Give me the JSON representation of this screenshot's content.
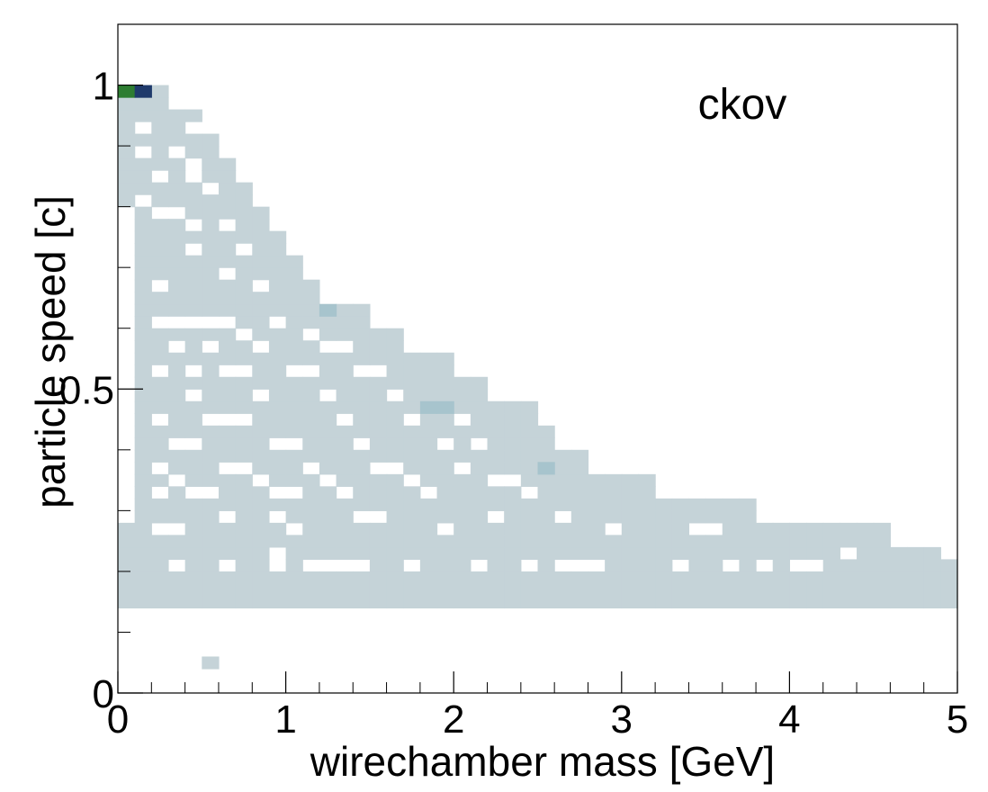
{
  "chart_data": {
    "type": "heatmap",
    "title": "ckov",
    "xlabel": "wirechamber mass [GeV]",
    "ylabel": "particle speed [c]",
    "xlim": [
      0,
      5
    ],
    "ylim": [
      0,
      1.1
    ],
    "xticks": [
      0,
      1,
      2,
      3,
      4,
      5
    ],
    "xtick_labels": [
      "0",
      "1",
      "2",
      "3",
      "4",
      "5"
    ],
    "yticks": [
      0,
      0.5,
      1
    ],
    "ytick_labels": [
      "0",
      "0.5",
      "1"
    ],
    "grid": false,
    "legend": "none",
    "bins": {
      "x_count": 50,
      "x_width": 0.1,
      "y_width": 0.02
    },
    "colors": {
      "low": "#c5d3d8",
      "mid": "#a7c4cd",
      "high": "#1f3a6b",
      "peak": "#2e7d32"
    },
    "regions": [
      {
        "ymin": 0.14,
        "ymax": 0.18,
        "xmin": 0.0,
        "xmax": 5.0,
        "level": 1
      },
      {
        "ymin": 0.18,
        "ymax": 0.24,
        "xmin": 0.0,
        "xmax": 5.0,
        "level": 1
      },
      {
        "ymin": 0.24,
        "ymax": 0.28,
        "xmin": 0.0,
        "xmax": 4.6,
        "level": 1
      },
      {
        "ymin": 0.28,
        "ymax": 0.32,
        "xmin": 0.1,
        "xmax": 3.8,
        "level": 1
      },
      {
        "ymin": 0.32,
        "ymax": 0.36,
        "xmin": 0.1,
        "xmax": 3.2,
        "level": 1
      },
      {
        "ymin": 0.36,
        "ymax": 0.4,
        "xmin": 0.1,
        "xmax": 2.8,
        "level": 1
      },
      {
        "ymin": 0.4,
        "ymax": 0.44,
        "xmin": 0.1,
        "xmax": 2.6,
        "level": 1
      },
      {
        "ymin": 0.44,
        "ymax": 0.48,
        "xmin": 0.1,
        "xmax": 2.5,
        "level": 1
      },
      {
        "ymin": 0.48,
        "ymax": 0.52,
        "xmin": 0.1,
        "xmax": 2.2,
        "level": 1
      },
      {
        "ymin": 0.52,
        "ymax": 0.56,
        "xmin": 0.1,
        "xmax": 2.0,
        "level": 1
      },
      {
        "ymin": 0.56,
        "ymax": 0.6,
        "xmin": 0.1,
        "xmax": 1.7,
        "level": 1
      },
      {
        "ymin": 0.6,
        "ymax": 0.64,
        "xmin": 0.1,
        "xmax": 1.5,
        "level": 1
      },
      {
        "ymin": 0.64,
        "ymax": 0.68,
        "xmin": 0.1,
        "xmax": 1.2,
        "level": 1
      },
      {
        "ymin": 0.68,
        "ymax": 0.72,
        "xmin": 0.1,
        "xmax": 1.1,
        "level": 1
      },
      {
        "ymin": 0.72,
        "ymax": 0.76,
        "xmin": 0.1,
        "xmax": 1.0,
        "level": 1
      },
      {
        "ymin": 0.76,
        "ymax": 0.8,
        "xmin": 0.1,
        "xmax": 0.9,
        "level": 1
      },
      {
        "ymin": 0.8,
        "ymax": 0.84,
        "xmin": 0.0,
        "xmax": 0.8,
        "level": 1
      },
      {
        "ymin": 0.84,
        "ymax": 0.88,
        "xmin": 0.0,
        "xmax": 0.7,
        "level": 1
      },
      {
        "ymin": 0.88,
        "ymax": 0.92,
        "xmin": 0.0,
        "xmax": 0.6,
        "level": 1
      },
      {
        "ymin": 0.92,
        "ymax": 0.96,
        "xmin": 0.0,
        "xmax": 0.5,
        "level": 1
      },
      {
        "ymin": 0.96,
        "ymax": 1.0,
        "xmin": 0.0,
        "xmax": 0.3,
        "level": 1
      }
    ],
    "cells": [
      {
        "x": 0.0,
        "y": 0.98,
        "level": 4
      },
      {
        "x": 0.1,
        "y": 0.98,
        "level": 3
      },
      {
        "x": 1.2,
        "y": 0.62,
        "level": 2
      },
      {
        "x": 1.8,
        "y": 0.46,
        "level": 2
      },
      {
        "x": 1.9,
        "y": 0.46,
        "level": 2
      },
      {
        "x": 2.5,
        "y": 0.36,
        "level": 2
      },
      {
        "x": 0.5,
        "y": 0.04,
        "level": 1
      }
    ],
    "holes": [
      {
        "x": 0.1,
        "y": 0.92
      },
      {
        "x": 0.4,
        "y": 0.92
      },
      {
        "x": 0.5,
        "y": 0.92
      },
      {
        "x": 0.1,
        "y": 0.88
      },
      {
        "x": 0.3,
        "y": 0.88
      },
      {
        "x": 0.4,
        "y": 0.86
      },
      {
        "x": 0.2,
        "y": 0.84
      },
      {
        "x": 0.4,
        "y": 0.84
      },
      {
        "x": 0.5,
        "y": 0.82
      },
      {
        "x": 0.1,
        "y": 0.8
      },
      {
        "x": 0.2,
        "y": 0.78
      },
      {
        "x": 0.3,
        "y": 0.78
      },
      {
        "x": 0.4,
        "y": 0.76
      },
      {
        "x": 0.6,
        "y": 0.76
      },
      {
        "x": 0.7,
        "y": 0.72
      },
      {
        "x": 0.4,
        "y": 0.72
      },
      {
        "x": 0.6,
        "y": 0.68
      },
      {
        "x": 0.2,
        "y": 0.66
      },
      {
        "x": 0.8,
        "y": 0.66
      },
      {
        "x": 0.2,
        "y": 0.6
      },
      {
        "x": 0.3,
        "y": 0.6
      },
      {
        "x": 0.4,
        "y": 0.6
      },
      {
        "x": 0.5,
        "y": 0.6
      },
      {
        "x": 0.6,
        "y": 0.6
      },
      {
        "x": 0.9,
        "y": 0.6
      },
      {
        "x": 0.7,
        "y": 0.58
      },
      {
        "x": 1.1,
        "y": 0.58
      },
      {
        "x": 0.3,
        "y": 0.56
      },
      {
        "x": 0.5,
        "y": 0.56
      },
      {
        "x": 0.8,
        "y": 0.56
      },
      {
        "x": 1.2,
        "y": 0.56
      },
      {
        "x": 1.3,
        "y": 0.56
      },
      {
        "x": 0.2,
        "y": 0.52
      },
      {
        "x": 0.4,
        "y": 0.52
      },
      {
        "x": 0.6,
        "y": 0.52
      },
      {
        "x": 0.7,
        "y": 0.52
      },
      {
        "x": 1.0,
        "y": 0.52
      },
      {
        "x": 1.1,
        "y": 0.52
      },
      {
        "x": 1.4,
        "y": 0.52
      },
      {
        "x": 1.5,
        "y": 0.52
      },
      {
        "x": 0.4,
        "y": 0.48
      },
      {
        "x": 0.8,
        "y": 0.48
      },
      {
        "x": 1.2,
        "y": 0.48
      },
      {
        "x": 1.6,
        "y": 0.48
      },
      {
        "x": 0.2,
        "y": 0.44
      },
      {
        "x": 0.5,
        "y": 0.44
      },
      {
        "x": 0.6,
        "y": 0.44
      },
      {
        "x": 0.7,
        "y": 0.44
      },
      {
        "x": 1.3,
        "y": 0.44
      },
      {
        "x": 1.7,
        "y": 0.44
      },
      {
        "x": 2.0,
        "y": 0.44
      },
      {
        "x": 0.3,
        "y": 0.4
      },
      {
        "x": 0.4,
        "y": 0.4
      },
      {
        "x": 0.9,
        "y": 0.4
      },
      {
        "x": 1.0,
        "y": 0.4
      },
      {
        "x": 1.4,
        "y": 0.4
      },
      {
        "x": 1.9,
        "y": 0.4
      },
      {
        "x": 2.1,
        "y": 0.4
      },
      {
        "x": 0.2,
        "y": 0.36
      },
      {
        "x": 0.6,
        "y": 0.36
      },
      {
        "x": 0.7,
        "y": 0.36
      },
      {
        "x": 1.1,
        "y": 0.36
      },
      {
        "x": 1.5,
        "y": 0.36
      },
      {
        "x": 1.6,
        "y": 0.36
      },
      {
        "x": 2.0,
        "y": 0.36
      },
      {
        "x": 0.3,
        "y": 0.34
      },
      {
        "x": 0.8,
        "y": 0.34
      },
      {
        "x": 1.2,
        "y": 0.34
      },
      {
        "x": 1.7,
        "y": 0.34
      },
      {
        "x": 2.2,
        "y": 0.34
      },
      {
        "x": 2.3,
        "y": 0.34
      },
      {
        "x": 0.2,
        "y": 0.32
      },
      {
        "x": 0.4,
        "y": 0.32
      },
      {
        "x": 0.5,
        "y": 0.32
      },
      {
        "x": 0.9,
        "y": 0.32
      },
      {
        "x": 1.0,
        "y": 0.32
      },
      {
        "x": 1.3,
        "y": 0.32
      },
      {
        "x": 1.8,
        "y": 0.32
      },
      {
        "x": 2.4,
        "y": 0.32
      },
      {
        "x": 0.6,
        "y": 0.28
      },
      {
        "x": 0.9,
        "y": 0.28
      },
      {
        "x": 1.4,
        "y": 0.28
      },
      {
        "x": 1.5,
        "y": 0.28
      },
      {
        "x": 2.2,
        "y": 0.28
      },
      {
        "x": 2.6,
        "y": 0.28
      },
      {
        "x": 0.2,
        "y": 0.26
      },
      {
        "x": 0.3,
        "y": 0.26
      },
      {
        "x": 1.0,
        "y": 0.26
      },
      {
        "x": 1.9,
        "y": 0.26
      },
      {
        "x": 2.9,
        "y": 0.26
      },
      {
        "x": 3.4,
        "y": 0.26
      },
      {
        "x": 3.5,
        "y": 0.26
      },
      {
        "x": 0.3,
        "y": 0.2
      },
      {
        "x": 0.6,
        "y": 0.2
      },
      {
        "x": 0.9,
        "y": 0.2
      },
      {
        "x": 1.1,
        "y": 0.2
      },
      {
        "x": 1.2,
        "y": 0.2
      },
      {
        "x": 1.3,
        "y": 0.2
      },
      {
        "x": 1.4,
        "y": 0.2
      },
      {
        "x": 1.7,
        "y": 0.2
      },
      {
        "x": 2.1,
        "y": 0.2
      },
      {
        "x": 2.4,
        "y": 0.2
      },
      {
        "x": 2.6,
        "y": 0.2
      },
      {
        "x": 2.7,
        "y": 0.2
      },
      {
        "x": 2.8,
        "y": 0.2
      },
      {
        "x": 3.3,
        "y": 0.2
      },
      {
        "x": 3.6,
        "y": 0.2
      },
      {
        "x": 3.8,
        "y": 0.2
      },
      {
        "x": 4.0,
        "y": 0.2
      },
      {
        "x": 4.1,
        "y": 0.2
      },
      {
        "x": 0.9,
        "y": 0.22
      },
      {
        "x": 4.3,
        "y": 0.22
      },
      {
        "x": 4.9,
        "y": 0.22
      }
    ]
  }
}
